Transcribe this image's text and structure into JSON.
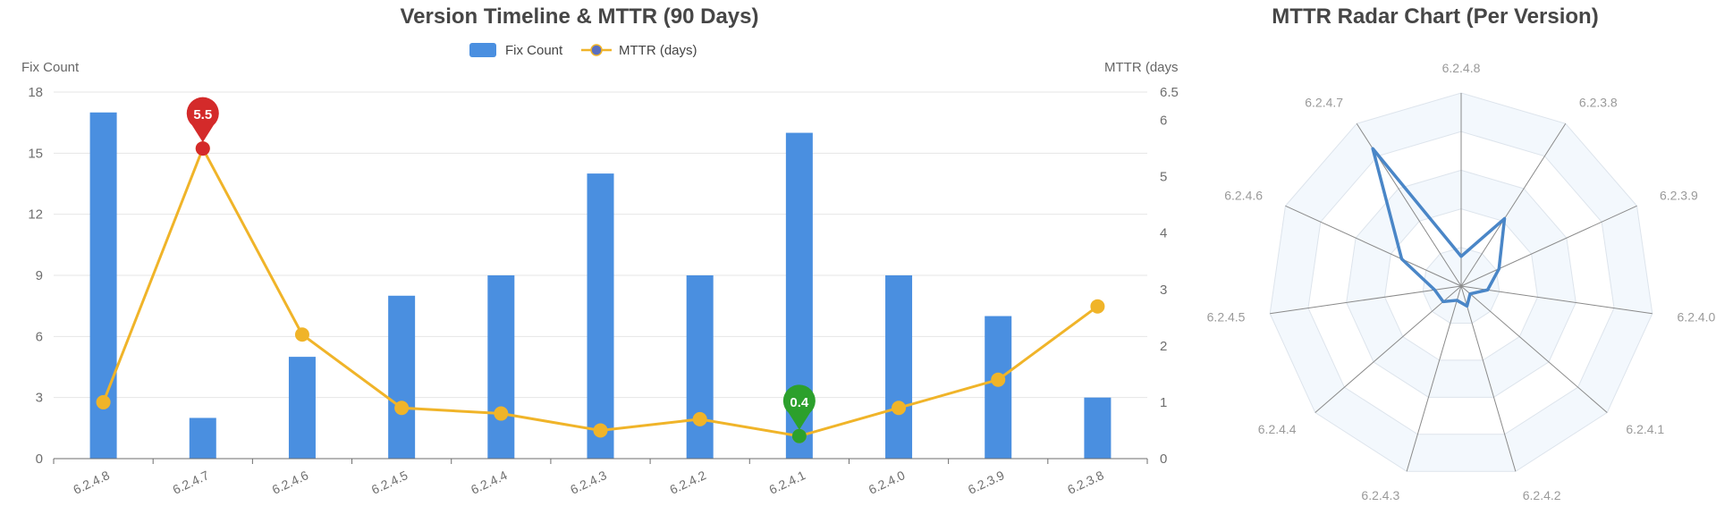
{
  "chart_data": [
    {
      "type": "bar",
      "title": "Version Timeline & MTTR (90 Days)",
      "categories": [
        "6.2.4.8",
        "6.2.4.7",
        "6.2.4.6",
        "6.2.4.5",
        "6.2.4.4",
        "6.2.4.3",
        "6.2.4.2",
        "6.2.4.1",
        "6.2.4.0",
        "6.2.3.9",
        "6.2.3.8"
      ],
      "y_left": {
        "label": "Fix Count",
        "range": [
          0,
          18
        ],
        "ticks": [
          "0",
          "3",
          "6",
          "9",
          "12",
          "15",
          "18"
        ]
      },
      "y_right": {
        "label": "MTTR (days",
        "range": [
          0,
          6.5
        ],
        "ticks": [
          "0",
          "1",
          "2",
          "3",
          "4",
          "5",
          "6",
          "6.5"
        ]
      },
      "series": [
        {
          "name": "Fix Count",
          "type": "bar",
          "axis": "left",
          "color": "#4a8fe0",
          "values": [
            17,
            2,
            5,
            8,
            9,
            14,
            9,
            16,
            9,
            7,
            3
          ]
        },
        {
          "name": "MTTR (days)",
          "type": "line",
          "axis": "right",
          "color": "#f0b429",
          "values": [
            1.0,
            5.5,
            2.2,
            0.9,
            0.8,
            0.5,
            0.7,
            0.4,
            0.9,
            1.4,
            2.7
          ]
        }
      ],
      "markers": [
        {
          "label": "5.5",
          "category": "6.2.4.7",
          "value": 5.5,
          "color": "#d42a2a"
        },
        {
          "label": "0.4",
          "category": "6.2.4.1",
          "value": 0.4,
          "color": "#2ca02c"
        }
      ],
      "legend": {
        "position": "top-center",
        "items": [
          "Fix Count",
          "MTTR (days)"
        ]
      },
      "grid": true
    },
    {
      "type": "radar",
      "title": "MTTR Radar Chart (Per Version)",
      "indicators": [
        "6.2.4.8",
        "6.2.3.8",
        "6.2.3.9",
        "6.2.4.0",
        "6.2.4.1",
        "6.2.4.2",
        "6.2.4.3",
        "6.2.4.4",
        "6.2.4.5",
        "6.2.4.6",
        "6.2.4.7"
      ],
      "max": 6.5,
      "values": [
        1.0,
        2.7,
        1.4,
        0.9,
        0.4,
        0.7,
        0.5,
        0.8,
        0.9,
        2.2,
        5.5
      ],
      "color": "#4a86c7"
    }
  ]
}
